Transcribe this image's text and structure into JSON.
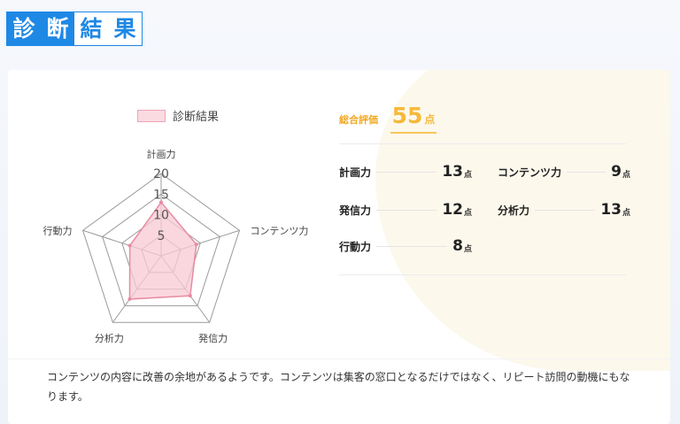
{
  "title": {
    "chars": [
      "診",
      "断",
      "結",
      "果"
    ]
  },
  "legend": {
    "label": "診断結果"
  },
  "radar": {
    "ticks": [
      "20",
      "15",
      "10",
      "5"
    ],
    "max": 20,
    "axes": [
      "計画力",
      "コンテンツ力",
      "発信力",
      "分析力",
      "行動力"
    ],
    "values": [
      13,
      9,
      12,
      13,
      8
    ]
  },
  "summary": {
    "label": "総合評価",
    "score": "55",
    "unit": "点"
  },
  "scores": [
    {
      "label": "計画力",
      "value": "13",
      "unit": "点"
    },
    {
      "label": "コンテンツ力",
      "value": "9",
      "unit": "点"
    },
    {
      "label": "発信力",
      "value": "12",
      "unit": "点"
    },
    {
      "label": "分析力",
      "value": "13",
      "unit": "点"
    },
    {
      "label": "行動力",
      "value": "8",
      "unit": "点"
    }
  ],
  "description": "コンテンツの内容に改善の余地があるようです。コンテンツは集客の窓口となるだけではなく、リピート訪問の動機にもなります。",
  "colors": {
    "accent_blue": "#1e88e5",
    "score_orange": "#f6b93b",
    "radar_fill": "#f8c9d4",
    "radar_stroke": "#e98aa2"
  }
}
